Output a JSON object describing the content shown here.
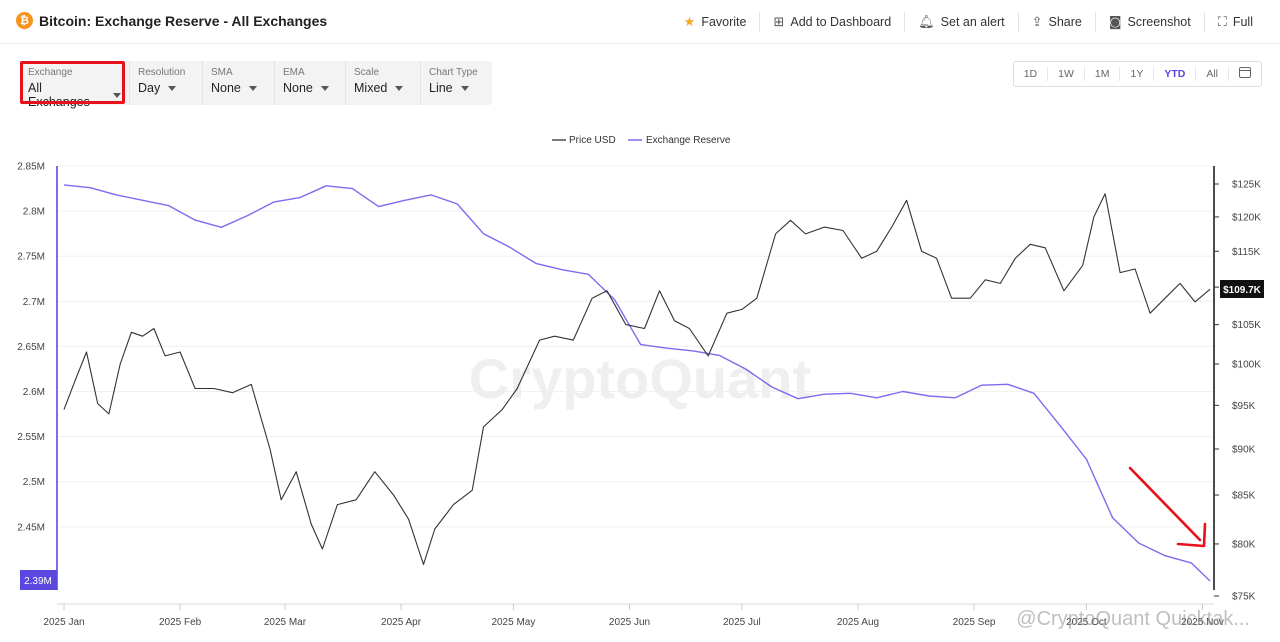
{
  "header": {
    "title": "Bitcoin: Exchange Reserve - All Exchanges",
    "icon": "bitcoin-icon",
    "actions": [
      {
        "name": "favorite-button",
        "label": "Favorite",
        "icon": "star-icon"
      },
      {
        "name": "add-to-dashboard-button",
        "label": "Add to Dashboard",
        "icon": "add-dashboard-icon"
      },
      {
        "name": "set-alert-button",
        "label": "Set an alert",
        "icon": "bell-icon"
      },
      {
        "name": "share-button",
        "label": "Share",
        "icon": "share-icon"
      },
      {
        "name": "screenshot-button",
        "label": "Screenshot",
        "icon": "camera-icon"
      },
      {
        "name": "full-button",
        "label": "Full",
        "icon": "fullscreen-icon"
      }
    ]
  },
  "controls": [
    {
      "name": "exchange-select",
      "label": "Exchange",
      "value": "All Exchanges"
    },
    {
      "name": "resolution-select",
      "label": "Resolution",
      "value": "Day"
    },
    {
      "name": "sma-select",
      "label": "SMA",
      "value": "None"
    },
    {
      "name": "ema-select",
      "label": "EMA",
      "value": "None"
    },
    {
      "name": "scale-select",
      "label": "Scale",
      "value": "Mixed"
    },
    {
      "name": "chart-type-select",
      "label": "Chart Type",
      "value": "Line"
    }
  ],
  "ranges": {
    "items": [
      "1D",
      "1W",
      "1M",
      "1Y",
      "YTD",
      "All"
    ],
    "active": "YTD"
  },
  "watermark": "CryptoQuant",
  "footer_watermark": "@CryptoQuant Quicktak...",
  "colors": {
    "price": "#333333",
    "reserve": "#7b6cf0",
    "highlight": "#e8101a",
    "accent": "#5b47e0"
  },
  "chart_data": {
    "type": "line",
    "legend": [
      "Price USD",
      "Exchange Reserve"
    ],
    "legend_position": "top-center",
    "grid": true,
    "x_ticks": [
      "2025 Jan",
      "2025 Feb",
      "2025 Mar",
      "2025 Apr",
      "2025 May",
      "2025 Jun",
      "2025 Jul",
      "2025 Aug",
      "2025 Sep",
      "2025 Oct",
      "2025 Nov"
    ],
    "y_left": {
      "ticks": [
        "2.85M",
        "2.8M",
        "2.75M",
        "2.7M",
        "2.65M",
        "2.6M",
        "2.55M",
        "2.5M",
        "2.45M"
      ],
      "range": [
        2.38,
        2.85
      ]
    },
    "y_right": {
      "ticks": [
        "$125K",
        "$120K",
        "$115K",
        "$110K",
        "$105K",
        "$100K",
        "$95K",
        "$90K",
        "$85K",
        "$80K",
        "$75K"
      ]
    },
    "current_reserve": "2.39M",
    "current_price": "$109.7K",
    "series": [
      {
        "name": "Exchange Reserve",
        "axis": "left",
        "color": "#7b6cf0",
        "x": [
          "2025-01-01",
          "2025-01-08",
          "2025-01-15",
          "2025-01-22",
          "2025-01-29",
          "2025-02-05",
          "2025-02-12",
          "2025-02-19",
          "2025-02-26",
          "2025-03-05",
          "2025-03-12",
          "2025-03-19",
          "2025-03-26",
          "2025-04-02",
          "2025-04-09",
          "2025-04-16",
          "2025-04-23",
          "2025-04-30",
          "2025-05-07",
          "2025-05-14",
          "2025-05-21",
          "2025-05-28",
          "2025-06-04",
          "2025-06-11",
          "2025-06-18",
          "2025-06-25",
          "2025-07-02",
          "2025-07-09",
          "2025-07-16",
          "2025-07-23",
          "2025-07-30",
          "2025-08-06",
          "2025-08-13",
          "2025-08-20",
          "2025-08-27",
          "2025-09-03",
          "2025-09-10",
          "2025-09-17",
          "2025-09-24",
          "2025-10-01",
          "2025-10-08",
          "2025-10-15",
          "2025-10-22",
          "2025-10-29",
          "2025-11-03"
        ],
        "values": [
          2.829,
          2.826,
          2.818,
          2.812,
          2.806,
          2.79,
          2.782,
          2.795,
          2.81,
          2.815,
          2.828,
          2.825,
          2.805,
          2.812,
          2.818,
          2.808,
          2.775,
          2.76,
          2.742,
          2.735,
          2.73,
          2.702,
          2.652,
          2.648,
          2.645,
          2.64,
          2.625,
          2.605,
          2.592,
          2.597,
          2.598,
          2.593,
          2.6,
          2.595,
          2.593,
          2.607,
          2.608,
          2.598,
          2.562,
          2.525,
          2.46,
          2.432,
          2.418,
          2.41,
          2.39
        ]
      },
      {
        "name": "Price USD",
        "axis": "right",
        "color": "#333333",
        "x": [
          "2025-01-01",
          "2025-01-04",
          "2025-01-07",
          "2025-01-10",
          "2025-01-13",
          "2025-01-16",
          "2025-01-19",
          "2025-01-22",
          "2025-01-25",
          "2025-01-28",
          "2025-02-01",
          "2025-02-05",
          "2025-02-10",
          "2025-02-15",
          "2025-02-20",
          "2025-02-25",
          "2025-02-28",
          "2025-03-04",
          "2025-03-08",
          "2025-03-11",
          "2025-03-15",
          "2025-03-20",
          "2025-03-25",
          "2025-03-30",
          "2025-04-03",
          "2025-04-07",
          "2025-04-10",
          "2025-04-15",
          "2025-04-20",
          "2025-04-23",
          "2025-04-28",
          "2025-05-02",
          "2025-05-08",
          "2025-05-12",
          "2025-05-17",
          "2025-05-22",
          "2025-05-26",
          "2025-05-31",
          "2025-06-05",
          "2025-06-09",
          "2025-06-13",
          "2025-06-17",
          "2025-06-22",
          "2025-06-27",
          "2025-07-01",
          "2025-07-05",
          "2025-07-10",
          "2025-07-14",
          "2025-07-18",
          "2025-07-23",
          "2025-07-28",
          "2025-08-02",
          "2025-08-06",
          "2025-08-10",
          "2025-08-14",
          "2025-08-18",
          "2025-08-22",
          "2025-08-26",
          "2025-08-31",
          "2025-09-04",
          "2025-09-08",
          "2025-09-12",
          "2025-09-16",
          "2025-09-20",
          "2025-09-25",
          "2025-09-30",
          "2025-10-03",
          "2025-10-06",
          "2025-10-10",
          "2025-10-14",
          "2025-10-18",
          "2025-10-22",
          "2025-10-26",
          "2025-10-30",
          "2025-11-03"
        ],
        "values": [
          94.5,
          98.0,
          101.5,
          95.2,
          94.0,
          100.0,
          104.0,
          103.5,
          104.5,
          101.0,
          101.5,
          97.0,
          97.0,
          96.5,
          97.5,
          90.0,
          84.5,
          87.5,
          82.0,
          79.5,
          84.0,
          84.5,
          87.5,
          85.0,
          82.5,
          78.0,
          81.5,
          84.0,
          85.5,
          92.5,
          94.5,
          97.0,
          103.0,
          103.5,
          103.0,
          108.5,
          109.5,
          105.0,
          104.5,
          109.5,
          105.5,
          104.5,
          101.0,
          106.5,
          107.0,
          108.5,
          117.5,
          119.5,
          117.5,
          118.5,
          118.0,
          114.0,
          115.0,
          118.5,
          122.5,
          115.0,
          114.0,
          108.5,
          108.5,
          111.0,
          110.5,
          114.0,
          116.0,
          115.5,
          109.5,
          113.0,
          120.0,
          123.5,
          112.0,
          112.5,
          106.5,
          108.5,
          110.5,
          108.0,
          109.7
        ]
      }
    ]
  }
}
